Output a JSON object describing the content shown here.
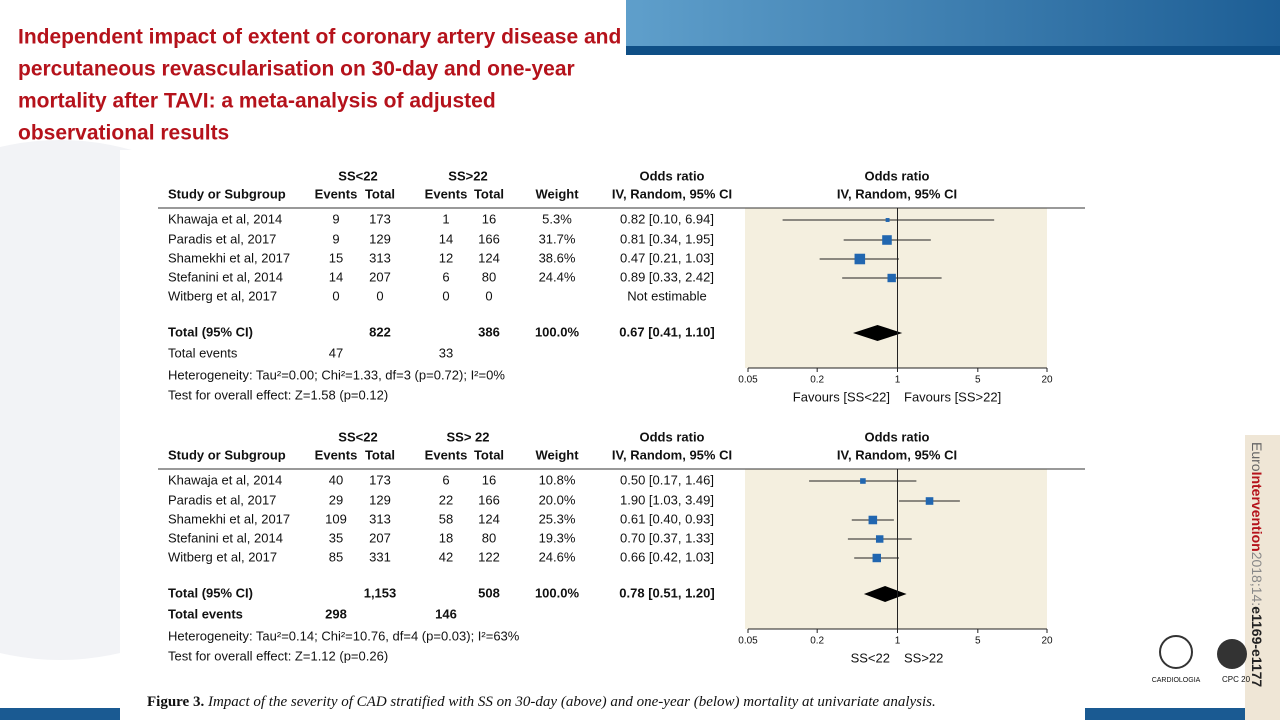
{
  "header": {
    "title": [
      "Independent impact of extent of coronary artery disease and",
      "percutaneous revascularisation on 30-day and one-year",
      "mortality after TAVI: a meta-analysis of adjusted",
      "observational results"
    ]
  },
  "panels": [
    {
      "group_headers": [
        "SS<22",
        "SS>22"
      ],
      "columns": [
        "Study or Subgroup",
        "Events",
        "Total",
        "Events",
        "Total",
        "Weight"
      ],
      "or_header": [
        "Odds ratio",
        "IV, Random, 95% CI"
      ],
      "plot_header": [
        "Odds ratio",
        "IV, Random, 95% CI"
      ],
      "rows": [
        [
          "Khawaja et al, 2014",
          "9",
          "173",
          "1",
          "16",
          "5.3%",
          "0.82 [0.10, 6.94]"
        ],
        [
          "Paradis et al, 2017",
          "9",
          "129",
          "14",
          "166",
          "31.7%",
          "0.81 [0.34, 1.95]"
        ],
        [
          "Shamekhi et al, 2017",
          "15",
          "313",
          "12",
          "124",
          "38.6%",
          "0.47 [0.21, 1.03]"
        ],
        [
          "Stefanini et al, 2014",
          "14",
          "207",
          "6",
          "80",
          "24.4%",
          "0.89 [0.33, 2.42]"
        ],
        [
          "Witberg et al, 2017",
          "0",
          "0",
          "0",
          "0",
          null,
          "Not estimable"
        ]
      ],
      "total": [
        "Total (95% CI)",
        "822",
        "386",
        "100.0%",
        "0.67 [0.41, 1.10]"
      ],
      "total_events": [
        "Total events",
        "47",
        "33"
      ],
      "heterogeneity": "Heterogeneity: Tau²=0.00; Chi²=1.33, df=3 (p=0.72); I²=0%",
      "overall": "Test for overall effect: Z=1.58 (p=0.12)",
      "axis_ticks": [
        0.05,
        0.2,
        1,
        5,
        20
      ],
      "favours": [
        "Favours [SS<22]",
        "Favours [SS>22]"
      ]
    },
    {
      "group_headers": [
        "SS<22",
        "SS> 22"
      ],
      "columns": [
        "Study or Subgroup",
        "Events",
        "Total",
        "Events",
        "Total",
        "Weight"
      ],
      "or_header": [
        "Odds ratio",
        "IV, Random, 95% CI"
      ],
      "plot_header": [
        "Odds ratio",
        "IV, Random, 95% CI"
      ],
      "rows": [
        [
          "Khawaja et al, 2014",
          "40",
          "173",
          "6",
          "16",
          "10.8%",
          "0.50 [0.17, 1.46]"
        ],
        [
          "Paradis et al, 2017",
          "29",
          "129",
          "22",
          "166",
          "20.0%",
          "1.90 [1.03, 3.49]"
        ],
        [
          "Shamekhi et al, 2017",
          "109",
          "313",
          "58",
          "124",
          "25.3%",
          "0.61 [0.40, 0.93]"
        ],
        [
          "Stefanini et al, 2014",
          "35",
          "207",
          "18",
          "80",
          "19.3%",
          "0.70 [0.37, 1.33]"
        ],
        [
          "Witberg et al, 2017",
          "85",
          "331",
          "42",
          "122",
          "24.6%",
          "0.66 [0.42, 1.03]"
        ]
      ],
      "total": [
        "Total (95% CI)",
        "1,153",
        "508",
        "100.0%",
        "0.78 [0.51, 1.20]"
      ],
      "total_events": [
        "Total events",
        "298",
        "146"
      ],
      "heterogeneity": "Heterogeneity: Tau²=0.14; Chi²=10.76, df=4 (p=0.03); I²=63%",
      "overall": "Test for overall effect: Z=1.12 (p=0.26)",
      "axis_ticks": [
        0.05,
        0.2,
        1,
        5,
        20
      ],
      "favours": [
        "SS<22",
        "SS>22"
      ]
    }
  ],
  "caption": {
    "label": "Figure 3.",
    "text": "Impact of the severity of CAD stratified with SS on 30-day (above) and one-year (below) mortality at univariate analysis."
  },
  "sidebar": [
    "Euro",
    "Intervention",
    "2018;14:",
    "e1169-e1177"
  ],
  "logos": [
    "CARDIOLOGIA",
    "CPC 20"
  ]
}
